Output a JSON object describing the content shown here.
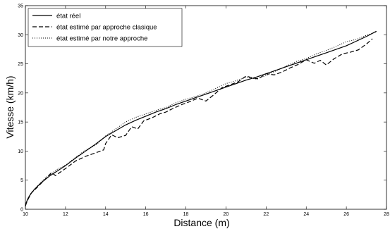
{
  "chart_data": {
    "type": "line",
    "title": "",
    "xlabel": "Distance (m)",
    "ylabel": "Vitesse (km/h)",
    "xlim": [
      10,
      28
    ],
    "ylim": [
      0,
      35
    ],
    "xticks": [
      "10",
      "12",
      "14",
      "16",
      "18",
      "20",
      "22",
      "24",
      "26",
      "28"
    ],
    "yticks": [
      "0",
      "5",
      "10",
      "15",
      "20",
      "25",
      "30",
      "35"
    ],
    "grid": false,
    "legend_position": "top-left",
    "series": [
      {
        "name": "état réel",
        "style": "solid",
        "color": "#000000",
        "x": [
          10.0,
          10.05,
          10.15,
          10.3,
          10.5,
          10.8,
          11.2,
          11.6,
          12.0,
          12.5,
          13.0,
          13.5,
          14.0,
          14.5,
          15.0,
          15.5,
          16.0,
          16.5,
          17.0,
          17.5,
          18.0,
          18.5,
          19.0,
          19.5,
          20.0,
          20.5,
          21.0,
          21.5,
          22.0,
          22.5,
          23.0,
          23.5,
          24.0,
          24.5,
          25.0,
          25.5,
          26.0,
          26.5,
          27.0,
          27.5
        ],
        "y": [
          0.5,
          1.2,
          2.0,
          2.8,
          3.6,
          4.6,
          5.7,
          6.6,
          7.5,
          8.8,
          10.0,
          11.2,
          12.5,
          13.5,
          14.5,
          15.3,
          16.0,
          16.7,
          17.3,
          18.0,
          18.6,
          19.2,
          19.8,
          20.4,
          21.0,
          21.6,
          22.2,
          22.7,
          23.3,
          23.9,
          24.5,
          25.1,
          25.7,
          26.3,
          26.9,
          27.5,
          28.1,
          28.9,
          29.7,
          30.6
        ]
      },
      {
        "name": "état estimé par approche clasique",
        "style": "dashed",
        "color": "#000000",
        "x": [
          10.0,
          10.1,
          10.3,
          10.6,
          11.0,
          11.3,
          11.5,
          12.0,
          12.5,
          13.0,
          13.5,
          13.9,
          14.0,
          14.3,
          14.6,
          15.0,
          15.3,
          15.6,
          15.9,
          16.3,
          16.7,
          17.0,
          17.4,
          17.8,
          18.2,
          18.6,
          19.0,
          19.4,
          19.8,
          20.2,
          20.6,
          21.0,
          21.3,
          21.6,
          22.0,
          22.4,
          22.8,
          23.2,
          23.6,
          24.0,
          24.4,
          24.7,
          25.0,
          25.4,
          25.8,
          26.2,
          26.6,
          27.0,
          27.3
        ],
        "y": [
          0.6,
          1.5,
          2.8,
          3.8,
          5.2,
          6.3,
          5.8,
          7.0,
          8.3,
          9.1,
          9.7,
          10.2,
          11.3,
          12.8,
          12.3,
          12.7,
          14.2,
          13.8,
          15.2,
          15.7,
          16.4,
          16.7,
          17.4,
          18.0,
          18.5,
          19.1,
          18.6,
          19.7,
          20.9,
          21.4,
          21.9,
          22.9,
          22.6,
          22.4,
          23.3,
          23.1,
          23.6,
          24.3,
          24.9,
          25.7,
          25.1,
          25.6,
          24.8,
          25.9,
          26.7,
          27.0,
          27.4,
          28.4,
          29.3
        ]
      },
      {
        "name": "état estimé par notre approche",
        "style": "dotted",
        "color": "#000000",
        "x": [
          10.0,
          10.1,
          10.3,
          10.6,
          11.0,
          11.3,
          11.6,
          12.0,
          12.5,
          13.0,
          13.5,
          14.0,
          14.5,
          15.0,
          15.5,
          16.0,
          16.5,
          17.0,
          17.5,
          18.0,
          18.5,
          19.0,
          19.5,
          20.0,
          20.5,
          21.0,
          21.5,
          22.0,
          22.5,
          23.0,
          23.5,
          24.0,
          24.5,
          25.0,
          25.5,
          26.0,
          26.5,
          27.0,
          27.5
        ],
        "y": [
          0.7,
          1.7,
          2.9,
          4.0,
          5.4,
          6.1,
          6.9,
          7.6,
          8.9,
          10.2,
          11.0,
          12.6,
          13.8,
          15.0,
          15.8,
          16.4,
          17.0,
          17.5,
          18.3,
          18.9,
          19.4,
          20.0,
          20.8,
          21.6,
          22.1,
          22.7,
          22.4,
          23.0,
          23.8,
          24.6,
          25.4,
          25.9,
          26.7,
          27.3,
          28.0,
          28.8,
          29.2,
          29.9,
          30.5
        ]
      }
    ]
  }
}
